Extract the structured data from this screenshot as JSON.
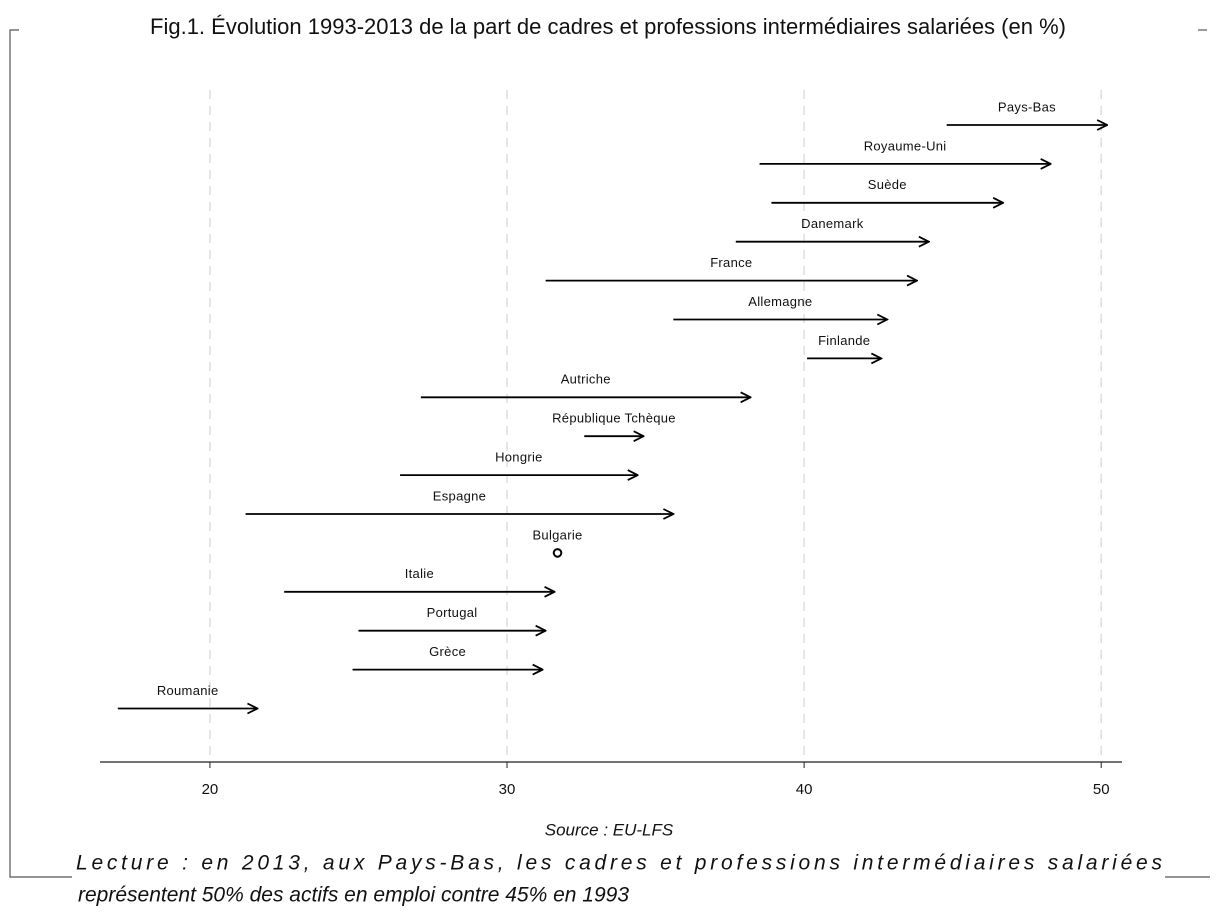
{
  "chart_data": {
    "type": "arrow",
    "title": "Fig.1. Évolution 1993-2013 de la part de cadres et professions intermédiaires salariées (en %)",
    "categories": [
      "Pays-Bas",
      "Royaume-Uni",
      "Suède",
      "Danemark",
      "France",
      "Allemagne",
      "Finlande",
      "Autriche",
      "République Tchèque",
      "Hongrie",
      "Espagne",
      "Bulgarie",
      "Italie",
      "Portugal",
      "Grèce",
      "Roumanie"
    ],
    "start": [
      44.8,
      38.5,
      38.9,
      37.7,
      31.3,
      35.6,
      40.1,
      27.1,
      32.6,
      26.4,
      21.2,
      31.7,
      22.5,
      25.0,
      24.8,
      16.9
    ],
    "end": [
      50.2,
      48.3,
      46.7,
      44.2,
      43.8,
      42.8,
      42.6,
      38.2,
      34.6,
      34.4,
      35.6,
      31.7,
      31.6,
      31.3,
      31.2,
      21.6
    ],
    "color": "#000000",
    "xlim": [
      16.3,
      50.7
    ],
    "xticks": [
      20,
      30,
      40,
      50
    ],
    "grid": true,
    "source": "Source : EU-LFS",
    "caption": [
      "Lecture : en 2013, aux Pays-Bas, les cadres et professions intermédiaires salariées",
      "représentent 50% des actifs en emploi contre 45% en 1993"
    ]
  }
}
